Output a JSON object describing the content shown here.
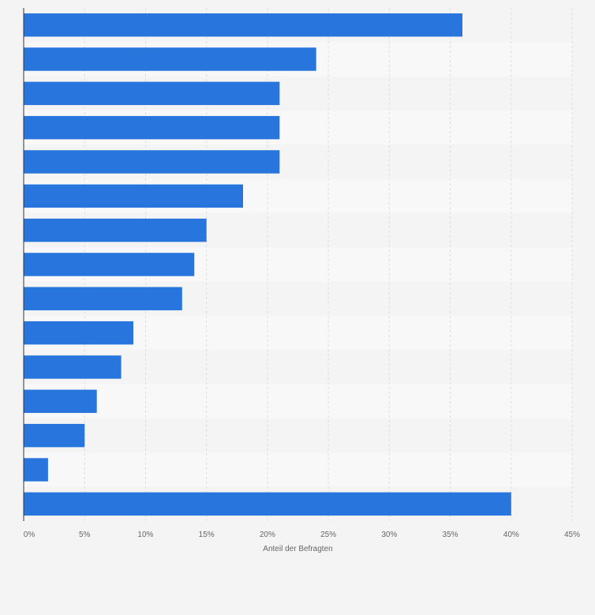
{
  "chart_data": {
    "type": "bar",
    "orientation": "horizontal",
    "categories": [
      "",
      "",
      "",
      "",
      "",
      "",
      "",
      "",
      "",
      "",
      "",
      "",
      "",
      "",
      ""
    ],
    "values": [
      36,
      24,
      21,
      21,
      21,
      18,
      15,
      14,
      13,
      9,
      8,
      6,
      5,
      2,
      40
    ],
    "xlabel": "Anteil der Befragten",
    "ylabel": "",
    "xlim": [
      0,
      45
    ],
    "x_ticks": [
      0,
      5,
      10,
      15,
      20,
      25,
      30,
      35,
      40,
      45
    ],
    "tick_labels": [
      "0%",
      "5%",
      "10%",
      "15%",
      "20%",
      "25%",
      "30%",
      "35%",
      "40%",
      "45%"
    ],
    "grid": true,
    "legend": "none",
    "colors": {
      "bar": "#2876dd",
      "band_light": "#f8f8f8",
      "band_dark": "#f4f4f4",
      "grid": "#dddddd",
      "axis": "#333333"
    }
  }
}
